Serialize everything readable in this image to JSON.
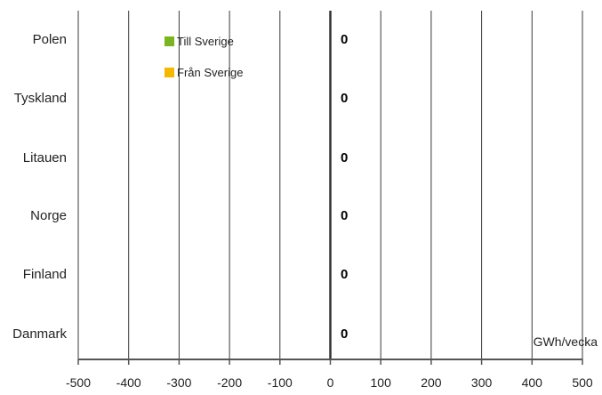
{
  "chart_data": {
    "type": "bar",
    "orientation": "horizontal",
    "categories": [
      "Polen",
      "Tyskland",
      "Litauen",
      "Norge",
      "Finland",
      "Danmark"
    ],
    "series": [
      {
        "name": "Till Sverige",
        "color": "#7ab51d",
        "values": [
          0,
          0,
          0,
          0,
          0,
          0
        ]
      },
      {
        "name": "Från Sverige",
        "color": "#f5b800",
        "values": [
          0,
          0,
          0,
          0,
          0,
          0
        ]
      }
    ],
    "value_labels": [
      "0",
      "0",
      "0",
      "0",
      "0",
      "0"
    ],
    "unit_label": "GWh/vecka",
    "xlim": [
      -500,
      500
    ],
    "x_ticks": [
      -500,
      -400,
      -300,
      -200,
      -100,
      0,
      100,
      200,
      300,
      400,
      500
    ],
    "grid": true,
    "legend_position": "top-left"
  }
}
